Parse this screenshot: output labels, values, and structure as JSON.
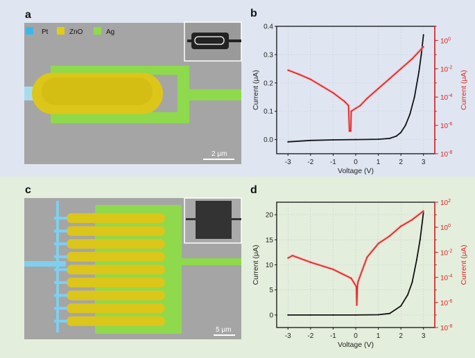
{
  "panels": {
    "a": {
      "letter": "a",
      "legend": [
        {
          "label": "Pt",
          "color": "#3fb6ea"
        },
        {
          "label": "ZnO",
          "color": "#e2cc14"
        },
        {
          "label": "Ag",
          "color": "#8fd94c"
        }
      ],
      "scale_bar": "2 μm"
    },
    "b": {
      "letter": "b"
    },
    "c": {
      "letter": "c",
      "scale_bar": "5 μm"
    },
    "d": {
      "letter": "d"
    }
  },
  "colors": {
    "top_bg": "#dfe6f1",
    "bottom_bg": "#e4eedc",
    "sem_bg": "#a4a4a4",
    "pt": "#3fb6ea",
    "zno": "#dcc61a",
    "ag": "#8fd94c",
    "linear_series": "#111111",
    "log_series": "#e02020"
  },
  "chart_data": [
    {
      "type": "line",
      "panel": "b",
      "xlabel": "Voltage (V)",
      "ylabel": "Current (μA)",
      "ylabel_right": "Current (μA)",
      "xlim": [
        -3.5,
        3.5
      ],
      "ylim": [
        -0.05,
        0.4
      ],
      "ylim_right": [
        1e-08,
        10
      ],
      "right_scale": "log",
      "grid": true,
      "x_ticks": [
        "-3",
        "-2",
        "-1",
        "0",
        "1",
        "2",
        "3"
      ],
      "y_ticks": [
        "0.0",
        "0.1",
        "0.2",
        "0.3",
        "0.4"
      ],
      "y_right_ticks": [
        "-8",
        "-6",
        "-4",
        "-2",
        "0"
      ],
      "series": [
        {
          "axis": "left",
          "color": "#111111",
          "x": [
            -3,
            -2,
            -1,
            0,
            1,
            1.5,
            1.8,
            2,
            2.2,
            2.4,
            2.6,
            2.8,
            2.9,
            3
          ],
          "y": [
            -0.008,
            -0.003,
            -0.001,
            0,
            0.001,
            0.004,
            0.012,
            0.025,
            0.05,
            0.09,
            0.15,
            0.24,
            0.3,
            0.37
          ]
        },
        {
          "axis": "right",
          "color": "#e02020",
          "x": [
            -3,
            -2.5,
            -2,
            -1.5,
            -1,
            -0.5,
            -0.32,
            -0.28,
            -0.22,
            -0.2,
            0,
            0.2,
            0.5,
            1,
            1.5,
            2,
            2.5,
            3
          ],
          "y": [
            0.008,
            0.004,
            0.0018,
            0.0006,
            0.0002,
            5e-05,
            2.5e-05,
            4e-07,
            4e-07,
            1e-05,
            1.6e-05,
            2.5e-05,
            8e-05,
            0.0004,
            0.002,
            0.01,
            0.05,
            0.36
          ]
        }
      ]
    },
    {
      "type": "line",
      "panel": "d",
      "xlabel": "Voltage (V)",
      "ylabel": "Current (μA)",
      "ylabel_right": "Current (μA)",
      "xlim": [
        -3.5,
        3.5
      ],
      "ylim": [
        -2.5,
        22.5
      ],
      "ylim_right": [
        1e-08,
        100
      ],
      "right_scale": "log",
      "grid": true,
      "x_ticks": [
        "-3",
        "-2",
        "-1",
        "0",
        "1",
        "2",
        "3"
      ],
      "y_ticks": [
        "0",
        "5",
        "10",
        "15",
        "20"
      ],
      "y_right_ticks": [
        "-8",
        "-6",
        "-4",
        "-2",
        "0",
        "2"
      ],
      "series": [
        {
          "axis": "left",
          "color": "#111111",
          "x": [
            -3,
            -2,
            -1,
            0,
            1,
            1.5,
            2,
            2.3,
            2.5,
            2.7,
            2.85,
            3
          ],
          "y": [
            0,
            0,
            0,
            0,
            0.05,
            0.3,
            1.8,
            4,
            6.5,
            11,
            15,
            20.5
          ]
        },
        {
          "axis": "right",
          "color": "#e02020",
          "x": [
            -3,
            -2.8,
            -2,
            -1,
            -0.2,
            0.03,
            0.05,
            0.07,
            0.1,
            0.5,
            1,
            1.5,
            2,
            2.5,
            3
          ],
          "y": [
            0.0035,
            0.0055,
            0.0016,
            0.00044,
            8.5e-05,
            1.8e-05,
            6e-07,
            1.8e-05,
            4.5e-05,
            0.004,
            0.05,
            0.2,
            1.2,
            4,
            20
          ]
        }
      ]
    }
  ]
}
